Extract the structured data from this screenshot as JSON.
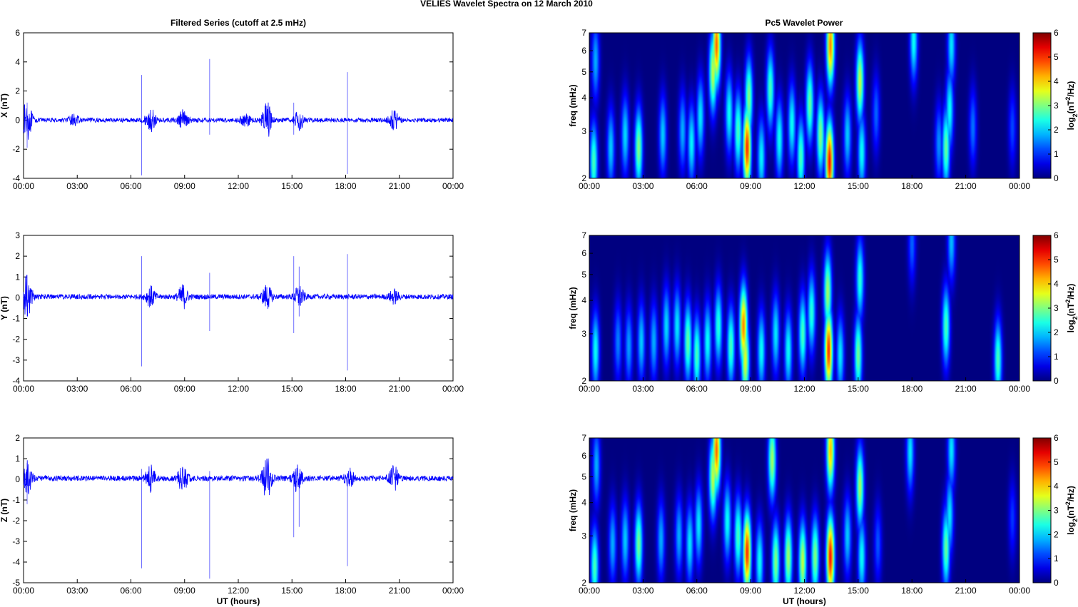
{
  "figure": {
    "title": "VELIES Wavelet Spectra on 12 March     2010",
    "left_column_title": "Filtered Series (cutoff at 2.5 mHz)",
    "right_column_title": "Pc5 Wavelet Power",
    "time_xlabel": "UT (hours)"
  },
  "chart_data": [
    {
      "type": "line",
      "component": "X",
      "ylabel": "X (nT)",
      "xlabel": "",
      "xlim": [
        0,
        24
      ],
      "ylim": [
        -4,
        6
      ],
      "yticks": [
        -4,
        -2,
        0,
        2,
        4,
        6
      ],
      "xtick_labels": [
        "00:00",
        "03:00",
        "06:00",
        "09:00",
        "12:00",
        "15:00",
        "18:00",
        "21:00",
        "00:00"
      ],
      "line_color": "#0000ff",
      "baseline": 0,
      "noise_amplitude": 0.15,
      "bursts": [
        {
          "t": 0.2,
          "amp": 1.3
        },
        {
          "t": 2.8,
          "amp": 0.35
        },
        {
          "t": 7.1,
          "amp": 0.8
        },
        {
          "t": 8.9,
          "amp": 0.6
        },
        {
          "t": 12.4,
          "amp": 0.45
        },
        {
          "t": 13.6,
          "amp": 1.2
        },
        {
          "t": 15.4,
          "amp": 0.6
        },
        {
          "t": 20.7,
          "amp": 0.65
        }
      ],
      "spikes": [
        {
          "t": 6.6,
          "min": -3.8,
          "max": 3.1
        },
        {
          "t": 10.4,
          "min": -1.0,
          "max": 4.2
        },
        {
          "t": 15.1,
          "min": -1.0,
          "max": 1.2
        },
        {
          "t": 18.1,
          "min": -3.7,
          "max": 3.3
        },
        {
          "t": 0.2,
          "min": -1.9,
          "max": 1.2
        }
      ]
    },
    {
      "type": "line",
      "component": "Y",
      "ylabel": "Y (nT)",
      "xlabel": "",
      "xlim": [
        0,
        24
      ],
      "ylim": [
        -4,
        3
      ],
      "yticks": [
        -4,
        -3,
        -2,
        -1,
        0,
        1,
        2,
        3
      ],
      "xtick_labels": [
        "00:00",
        "03:00",
        "06:00",
        "09:00",
        "12:00",
        "15:00",
        "18:00",
        "21:00",
        "00:00"
      ],
      "line_color": "#0000ff",
      "baseline": 0.05,
      "noise_amplitude": 0.12,
      "bursts": [
        {
          "t": 0.2,
          "amp": 1.0
        },
        {
          "t": 7.1,
          "amp": 0.45
        },
        {
          "t": 8.9,
          "amp": 0.55
        },
        {
          "t": 13.6,
          "amp": 0.55
        },
        {
          "t": 15.4,
          "amp": 0.5
        },
        {
          "t": 20.7,
          "amp": 0.3
        }
      ],
      "spikes": [
        {
          "t": 6.6,
          "min": -3.3,
          "max": 2.0
        },
        {
          "t": 10.4,
          "min": -1.6,
          "max": 1.2
        },
        {
          "t": 15.1,
          "min": -1.7,
          "max": 2.0
        },
        {
          "t": 15.4,
          "min": -0.9,
          "max": 1.5
        },
        {
          "t": 18.1,
          "min": -3.5,
          "max": 2.1
        },
        {
          "t": 0.2,
          "min": -0.9,
          "max": 1.1
        }
      ]
    },
    {
      "type": "line",
      "component": "Z",
      "ylabel": "Z (nT)",
      "xlabel": "UT (hours)",
      "xlim": [
        0,
        24
      ],
      "ylim": [
        -5,
        2
      ],
      "yticks": [
        -5,
        -4,
        -3,
        -2,
        -1,
        0,
        1,
        2
      ],
      "xtick_labels": [
        "00:00",
        "03:00",
        "06:00",
        "09:00",
        "12:00",
        "15:00",
        "18:00",
        "21:00",
        "00:00"
      ],
      "line_color": "#0000ff",
      "baseline": 0.05,
      "noise_amplitude": 0.13,
      "bursts": [
        {
          "t": 0.2,
          "amp": 0.8
        },
        {
          "t": 7.1,
          "amp": 0.6
        },
        {
          "t": 8.9,
          "amp": 0.65
        },
        {
          "t": 13.6,
          "amp": 0.95
        },
        {
          "t": 15.3,
          "amp": 0.6
        },
        {
          "t": 18.2,
          "amp": 0.4
        },
        {
          "t": 20.7,
          "amp": 0.55
        }
      ],
      "spikes": [
        {
          "t": 6.6,
          "min": -4.3,
          "max": 0.5
        },
        {
          "t": 10.4,
          "min": -4.8,
          "max": 0.4
        },
        {
          "t": 15.1,
          "min": -2.8,
          "max": 0.4
        },
        {
          "t": 15.4,
          "min": -2.3,
          "max": 0.3
        },
        {
          "t": 18.1,
          "min": -4.2,
          "max": 0.3
        },
        {
          "t": 0.2,
          "min": -1.2,
          "max": 0.8
        }
      ]
    },
    {
      "type": "heatmap",
      "component": "X",
      "ylabel": "freq (mHz)",
      "xlabel": "",
      "xlim": [
        0,
        24
      ],
      "ylim": [
        2,
        7
      ],
      "yscale": "log",
      "yticks": [
        2,
        3,
        4,
        5,
        6,
        7
      ],
      "xtick_labels": [
        "00:00",
        "03:00",
        "06:00",
        "09:00",
        "12:00",
        "15:00",
        "18:00",
        "21:00",
        "00:00"
      ],
      "colorbar": {
        "label": "log2(nT^2/Hz)",
        "range": [
          0,
          6
        ],
        "ticks": [
          0,
          1,
          2,
          3,
          4,
          5,
          6
        ],
        "colormap": "jet"
      },
      "blobs": [
        {
          "t": 0.25,
          "f": 2.3,
          "p": 3.0
        },
        {
          "t": 0.35,
          "f": 5.5,
          "p": 2.0
        },
        {
          "t": 1.2,
          "f": 2.6,
          "p": 2.2
        },
        {
          "t": 2.0,
          "f": 2.9,
          "p": 2.3
        },
        {
          "t": 2.75,
          "f": 2.6,
          "p": 3.4
        },
        {
          "t": 4.1,
          "f": 2.9,
          "p": 2.2
        },
        {
          "t": 5.2,
          "f": 3.0,
          "p": 2.0
        },
        {
          "t": 5.7,
          "f": 2.7,
          "p": 2.5
        },
        {
          "t": 6.2,
          "f": 3.4,
          "p": 2.4
        },
        {
          "t": 6.9,
          "f": 5.0,
          "p": 3.8
        },
        {
          "t": 7.1,
          "f": 6.3,
          "p": 5.2
        },
        {
          "t": 7.8,
          "f": 3.5,
          "p": 2.6
        },
        {
          "t": 8.3,
          "f": 3.0,
          "p": 3.0
        },
        {
          "t": 8.8,
          "f": 2.6,
          "p": 5.6
        },
        {
          "t": 8.9,
          "f": 4.0,
          "p": 3.4
        },
        {
          "t": 9.6,
          "f": 2.4,
          "p": 2.5
        },
        {
          "t": 10.1,
          "f": 4.3,
          "p": 3.0
        },
        {
          "t": 10.6,
          "f": 2.8,
          "p": 2.6
        },
        {
          "t": 11.3,
          "f": 3.2,
          "p": 2.6
        },
        {
          "t": 11.8,
          "f": 2.4,
          "p": 3.0
        },
        {
          "t": 12.3,
          "f": 3.8,
          "p": 3.2
        },
        {
          "t": 12.9,
          "f": 2.9,
          "p": 3.4
        },
        {
          "t": 13.4,
          "f": 2.3,
          "p": 5.8
        },
        {
          "t": 13.45,
          "f": 6.3,
          "p": 5.0
        },
        {
          "t": 14.4,
          "f": 2.9,
          "p": 2.2
        },
        {
          "t": 15.1,
          "f": 4.6,
          "p": 3.8
        },
        {
          "t": 15.2,
          "f": 2.5,
          "p": 2.6
        },
        {
          "t": 16.0,
          "f": 3.5,
          "p": 1.5
        },
        {
          "t": 18.1,
          "f": 6.5,
          "p": 2.6
        },
        {
          "t": 19.5,
          "f": 2.7,
          "p": 1.8
        },
        {
          "t": 19.9,
          "f": 2.6,
          "p": 3.2
        },
        {
          "t": 20.1,
          "f": 3.6,
          "p": 2.6
        },
        {
          "t": 20.2,
          "f": 6.3,
          "p": 2.4
        },
        {
          "t": 21.4,
          "f": 3.1,
          "p": 1.6
        },
        {
          "t": 23.6,
          "f": 3.1,
          "p": 1.3
        }
      ]
    },
    {
      "type": "heatmap",
      "component": "Y",
      "ylabel": "freq (mHz)",
      "xlabel": "",
      "xlim": [
        0,
        24
      ],
      "ylim": [
        2,
        7
      ],
      "yscale": "log",
      "yticks": [
        2,
        3,
        4,
        5,
        6,
        7
      ],
      "xtick_labels": [
        "00:00",
        "03:00",
        "06:00",
        "09:00",
        "12:00",
        "15:00",
        "18:00",
        "21:00",
        "00:00"
      ],
      "colorbar": {
        "label": "log2(nT^2/Hz)",
        "range": [
          0,
          6
        ],
        "ticks": [
          0,
          1,
          2,
          3,
          4,
          5,
          6
        ],
        "colormap": "jet"
      },
      "blobs": [
        {
          "t": 0.35,
          "f": 2.6,
          "p": 2.6
        },
        {
          "t": 1.6,
          "f": 2.8,
          "p": 1.7
        },
        {
          "t": 2.2,
          "f": 2.7,
          "p": 1.9
        },
        {
          "t": 2.9,
          "f": 2.8,
          "p": 2.2
        },
        {
          "t": 3.6,
          "f": 2.8,
          "p": 2.0
        },
        {
          "t": 4.3,
          "f": 3.2,
          "p": 2.3
        },
        {
          "t": 4.9,
          "f": 3.2,
          "p": 2.4
        },
        {
          "t": 5.5,
          "f": 2.8,
          "p": 3.2
        },
        {
          "t": 6.0,
          "f": 2.5,
          "p": 3.0
        },
        {
          "t": 6.6,
          "f": 2.8,
          "p": 2.6
        },
        {
          "t": 7.2,
          "f": 3.2,
          "p": 2.8
        },
        {
          "t": 7.9,
          "f": 2.7,
          "p": 3.0
        },
        {
          "t": 8.6,
          "f": 3.2,
          "p": 5.0
        },
        {
          "t": 8.7,
          "f": 2.4,
          "p": 4.0
        },
        {
          "t": 9.6,
          "f": 2.6,
          "p": 2.6
        },
        {
          "t": 10.4,
          "f": 3.0,
          "p": 2.4
        },
        {
          "t": 11.1,
          "f": 2.6,
          "p": 2.6
        },
        {
          "t": 11.9,
          "f": 3.0,
          "p": 3.0
        },
        {
          "t": 12.4,
          "f": 3.6,
          "p": 2.8
        },
        {
          "t": 13.35,
          "f": 2.6,
          "p": 5.6
        },
        {
          "t": 13.3,
          "f": 4.3,
          "p": 3.6
        },
        {
          "t": 14.0,
          "f": 2.5,
          "p": 2.4
        },
        {
          "t": 15.0,
          "f": 2.5,
          "p": 3.3
        },
        {
          "t": 15.1,
          "f": 4.8,
          "p": 2.8
        },
        {
          "t": 18.0,
          "f": 6.5,
          "p": 1.5
        },
        {
          "t": 19.9,
          "f": 3.2,
          "p": 3.0
        },
        {
          "t": 20.2,
          "f": 6.6,
          "p": 2.1
        },
        {
          "t": 22.8,
          "f": 2.4,
          "p": 3.0
        }
      ]
    },
    {
      "type": "heatmap",
      "component": "Z",
      "ylabel": "freq (mHz)",
      "xlabel": "UT (hours)",
      "xlim": [
        0,
        24
      ],
      "ylim": [
        2,
        7
      ],
      "yscale": "log",
      "yticks": [
        2,
        3,
        4,
        5,
        6,
        7
      ],
      "xtick_labels": [
        "00:00",
        "03:00",
        "06:00",
        "09:00",
        "12:00",
        "15:00",
        "18:00",
        "21:00",
        "00:00"
      ],
      "colorbar": {
        "label": "log2(nT^2/Hz)",
        "range": [
          0,
          6
        ],
        "ticks": [
          0,
          1,
          2,
          3,
          4,
          5,
          6
        ],
        "colormap": "jet"
      },
      "blobs": [
        {
          "t": 0.3,
          "f": 2.3,
          "p": 3.0
        },
        {
          "t": 0.4,
          "f": 5.5,
          "p": 2.0
        },
        {
          "t": 1.3,
          "f": 2.8,
          "p": 2.0
        },
        {
          "t": 2.0,
          "f": 2.9,
          "p": 2.2
        },
        {
          "t": 2.75,
          "f": 2.8,
          "p": 3.3
        },
        {
          "t": 4.0,
          "f": 2.9,
          "p": 2.0
        },
        {
          "t": 5.0,
          "f": 3.0,
          "p": 2.0
        },
        {
          "t": 5.6,
          "f": 2.8,
          "p": 2.4
        },
        {
          "t": 6.1,
          "f": 3.3,
          "p": 2.4
        },
        {
          "t": 6.9,
          "f": 5.0,
          "p": 3.8
        },
        {
          "t": 7.1,
          "f": 6.3,
          "p": 5.2
        },
        {
          "t": 7.7,
          "f": 3.4,
          "p": 2.6
        },
        {
          "t": 8.3,
          "f": 3.0,
          "p": 3.0
        },
        {
          "t": 8.8,
          "f": 2.6,
          "p": 5.6
        },
        {
          "t": 10.2,
          "f": 5.8,
          "p": 3.6
        },
        {
          "t": 9.5,
          "f": 2.4,
          "p": 2.6
        },
        {
          "t": 10.4,
          "f": 2.4,
          "p": 3.4
        },
        {
          "t": 11.1,
          "f": 2.5,
          "p": 3.6
        },
        {
          "t": 11.9,
          "f": 2.4,
          "p": 3.8
        },
        {
          "t": 12.6,
          "f": 2.5,
          "p": 3.4
        },
        {
          "t": 13.45,
          "f": 2.5,
          "p": 5.8
        },
        {
          "t": 13.45,
          "f": 6.3,
          "p": 4.6
        },
        {
          "t": 14.4,
          "f": 3.0,
          "p": 2.2
        },
        {
          "t": 15.1,
          "f": 4.6,
          "p": 3.6
        },
        {
          "t": 15.2,
          "f": 2.5,
          "p": 2.6
        },
        {
          "t": 16.1,
          "f": 2.8,
          "p": 1.4
        },
        {
          "t": 17.9,
          "f": 6.2,
          "p": 2.4
        },
        {
          "t": 19.9,
          "f": 2.7,
          "p": 3.2
        },
        {
          "t": 20.1,
          "f": 3.6,
          "p": 2.4
        },
        {
          "t": 20.2,
          "f": 6.3,
          "p": 2.4
        },
        {
          "t": 23.6,
          "f": 3.5,
          "p": 1.2
        }
      ]
    }
  ]
}
